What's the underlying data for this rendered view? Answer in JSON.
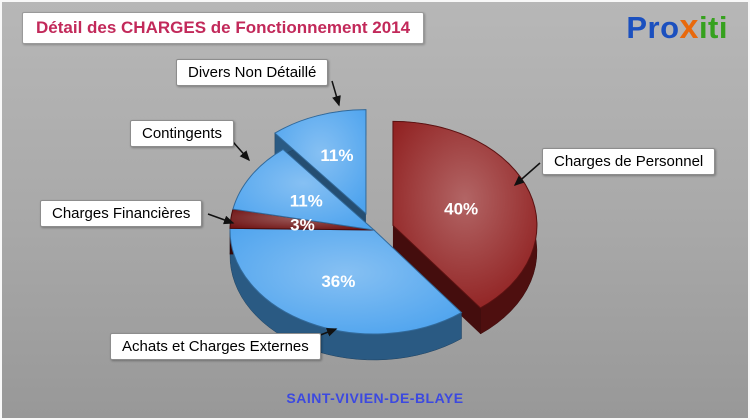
{
  "header": {
    "title": "Détail des CHARGES de Fonctionnement 2014",
    "title_color": "#c2295a"
  },
  "logo": {
    "parts": [
      {
        "text": "Pro",
        "color": "#1b50bf"
      },
      {
        "text": "x",
        "color": "#e8690c"
      },
      {
        "text": "iti",
        "color": "#36a11e"
      }
    ]
  },
  "footer": {
    "location": "SAINT-VIVIEN-DE-BLAYE",
    "color": "#3c49e0"
  },
  "chart_data": {
    "type": "pie",
    "style": "3d-exploded",
    "title": "Détail des CHARGES de Fonctionnement 2014",
    "labels": [
      "Charges de Personnel",
      "Achats et Charges Externes",
      "Charges Financières",
      "Contingents",
      "Divers Non Détaillé"
    ],
    "values": [
      40,
      36,
      3,
      11,
      11
    ],
    "unit": "%",
    "colors": [
      "#8e1c1c",
      "#4da3ee",
      "#6e1111",
      "#4da3ee",
      "#4da3ee"
    ],
    "percent_label_color": "#ffffff",
    "start_angle_deg": 0,
    "direction": "clockwise",
    "exploded_slices": [
      "Charges de Personnel",
      "Divers Non Détaillé"
    ],
    "legend": "none",
    "location_label": "SAINT-VIVIEN-DE-BLAYE"
  }
}
